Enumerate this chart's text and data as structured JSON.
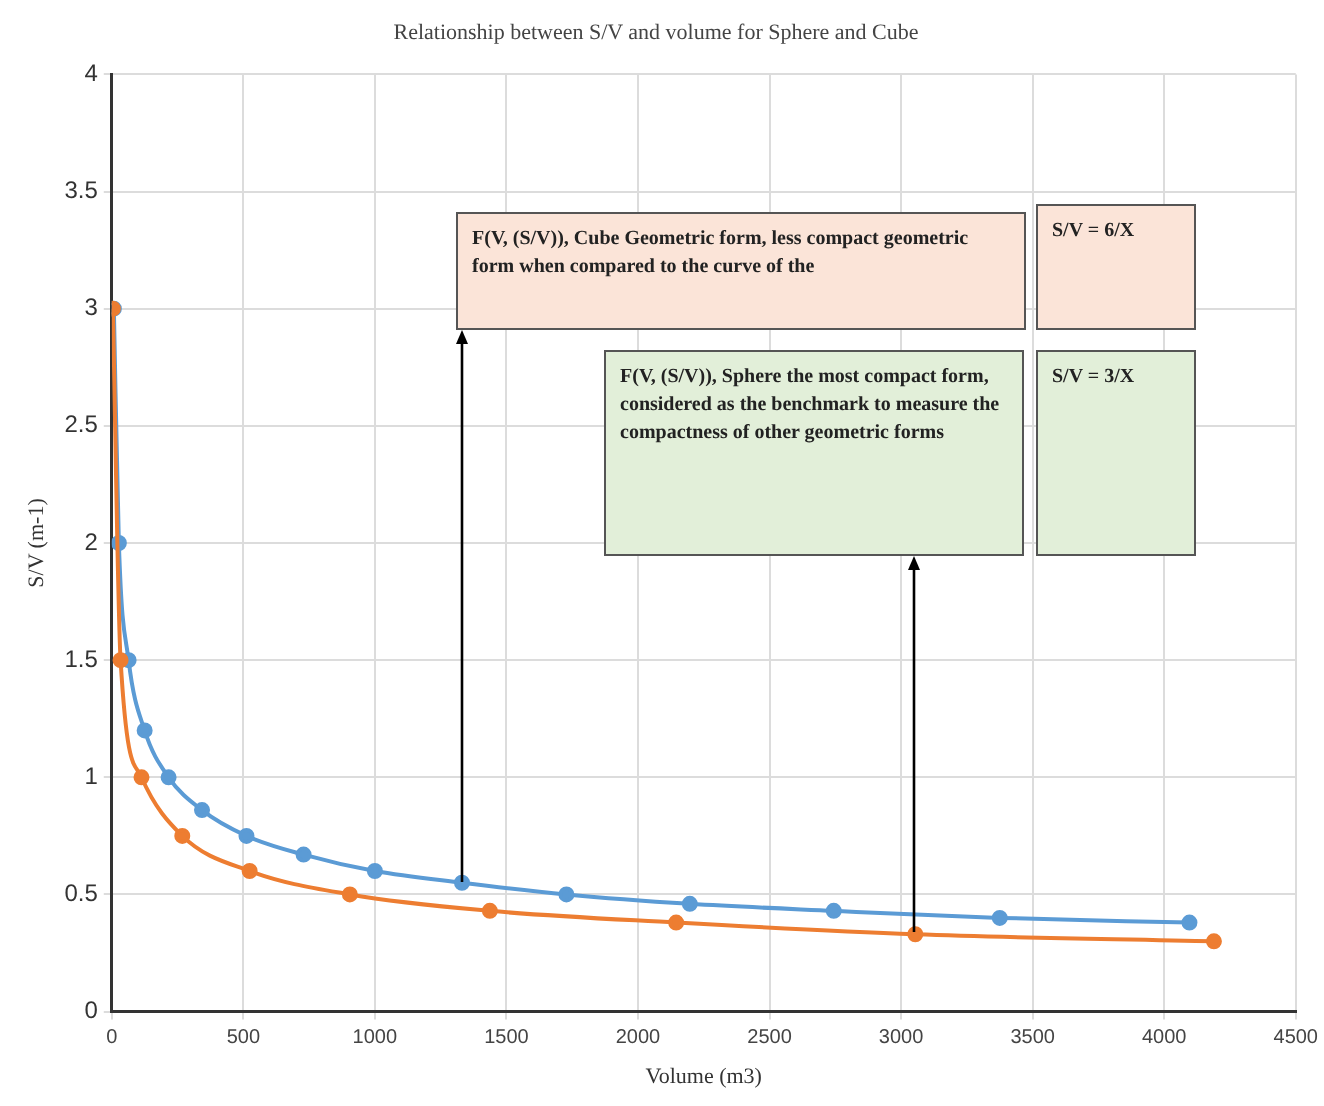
{
  "chart_data": {
    "type": "line",
    "title": "Relationship between S/V and volume for Sphere and Cube",
    "xlabel": "Volume (m3)",
    "ylabel": "S/V (m-1)",
    "xlim": [
      0,
      4500
    ],
    "xticks": [
      0,
      500,
      1000,
      1500,
      2000,
      2500,
      3000,
      3500,
      4000,
      4500
    ],
    "ylim": [
      0,
      4
    ],
    "yticks": [
      0,
      0.5,
      1,
      1.5,
      2,
      2.5,
      3,
      3.5,
      4
    ],
    "grid": true,
    "marker": "circle",
    "legend": false,
    "series": [
      {
        "color": "#5b9bd5",
        "x": [
          8,
          27,
          64,
          125,
          216,
          343,
          512,
          729,
          1000,
          1331,
          1728,
          2197,
          2744,
          3375,
          4096
        ],
        "values": [
          3,
          2,
          1.5,
          1.2,
          1,
          0.86,
          0.75,
          0.67,
          0.6,
          0.55,
          0.5,
          0.46,
          0.43,
          0.4,
          0.38
        ]
      },
      {
        "color": "#ed7d31",
        "x": [
          4.19,
          33.5,
          113,
          268,
          524,
          905,
          1437,
          2145,
          3054,
          4189
        ],
        "values": [
          3,
          1.5,
          1,
          0.75,
          0.6,
          0.5,
          0.43,
          0.38,
          0.33,
          0.3
        ]
      }
    ],
    "annotations": [
      "F(V, (S/V)), Cube Geometric form, less compact geometric form when compared to the curve of the",
      "S/V = 6/X",
      "F(V, (S/V)), Sphere the most compact form, considered as the benchmark to measure the compactness of other geometric forms",
      "S/V = 3/X"
    ]
  }
}
